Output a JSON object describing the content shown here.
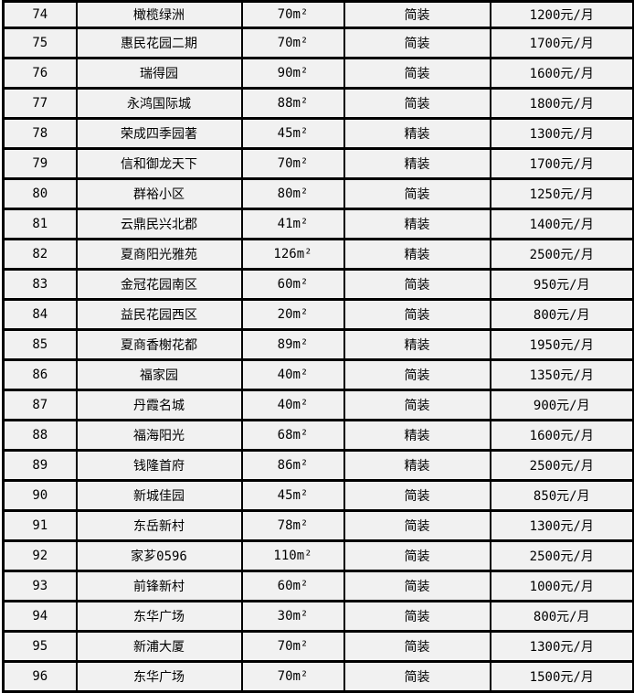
{
  "colors": {
    "cell_background": "#f1f1f1",
    "border": "#000000",
    "text": "#000000",
    "page_background": "#ffffff"
  },
  "table": {
    "description": "rental-property-listing-table",
    "rows": [
      {
        "num": "74",
        "name": "橄榄绿洲",
        "area": "70m²",
        "decoration": "简装",
        "price": "1200元/月"
      },
      {
        "num": "75",
        "name": "惠民花园二期",
        "area": "70m²",
        "decoration": "简装",
        "price": "1700元/月"
      },
      {
        "num": "76",
        "name": "瑞得园",
        "area": "90m²",
        "decoration": "简装",
        "price": "1600元/月"
      },
      {
        "num": "77",
        "name": "永鸿国际城",
        "area": "88m²",
        "decoration": "简装",
        "price": "1800元/月"
      },
      {
        "num": "78",
        "name": "荣成四季园著",
        "area": "45m²",
        "decoration": "精装",
        "price": "1300元/月"
      },
      {
        "num": "79",
        "name": "信和御龙天下",
        "area": "70m²",
        "decoration": "精装",
        "price": "1700元/月"
      },
      {
        "num": "80",
        "name": "群裕小区",
        "area": "80m²",
        "decoration": "简装",
        "price": "1250元/月"
      },
      {
        "num": "81",
        "name": "云鼎民兴北郡",
        "area": "41m²",
        "decoration": "精装",
        "price": "1400元/月"
      },
      {
        "num": "82",
        "name": "夏商阳光雅苑",
        "area": "126m²",
        "decoration": "精装",
        "price": "2500元/月"
      },
      {
        "num": "83",
        "name": "金冠花园南区",
        "area": "60m²",
        "decoration": "简装",
        "price": "950元/月"
      },
      {
        "num": "84",
        "name": "益民花园西区",
        "area": "20m²",
        "decoration": "简装",
        "price": "800元/月"
      },
      {
        "num": "85",
        "name": "夏商香榭花都",
        "area": "89m²",
        "decoration": "精装",
        "price": "1950元/月"
      },
      {
        "num": "86",
        "name": "福家园",
        "area": "40m²",
        "decoration": "简装",
        "price": "1350元/月"
      },
      {
        "num": "87",
        "name": "丹霞名城",
        "area": "40m²",
        "decoration": "简装",
        "price": "900元/月"
      },
      {
        "num": "88",
        "name": "福海阳光",
        "area": "68m²",
        "decoration": "精装",
        "price": "1600元/月"
      },
      {
        "num": "89",
        "name": "钱隆首府",
        "area": "86m²",
        "decoration": "精装",
        "price": "2500元/月"
      },
      {
        "num": "90",
        "name": "新城佳园",
        "area": "45m²",
        "decoration": "简装",
        "price": "850元/月"
      },
      {
        "num": "91",
        "name": "东岳新村",
        "area": "78m²",
        "decoration": "简装",
        "price": "1300元/月"
      },
      {
        "num": "92",
        "name": "家芗0596",
        "area": "110m²",
        "decoration": "简装",
        "price": "2500元/月"
      },
      {
        "num": "93",
        "name": "前锋新村",
        "area": "60m²",
        "decoration": "简装",
        "price": "1000元/月"
      },
      {
        "num": "94",
        "name": "东华广场",
        "area": "30m²",
        "decoration": "简装",
        "price": "800元/月"
      },
      {
        "num": "95",
        "name": "新浦大厦",
        "area": "70m²",
        "decoration": "简装",
        "price": "1300元/月"
      },
      {
        "num": "96",
        "name": "东华广场",
        "area": "70m²",
        "decoration": "简装",
        "price": "1500元/月"
      }
    ]
  }
}
